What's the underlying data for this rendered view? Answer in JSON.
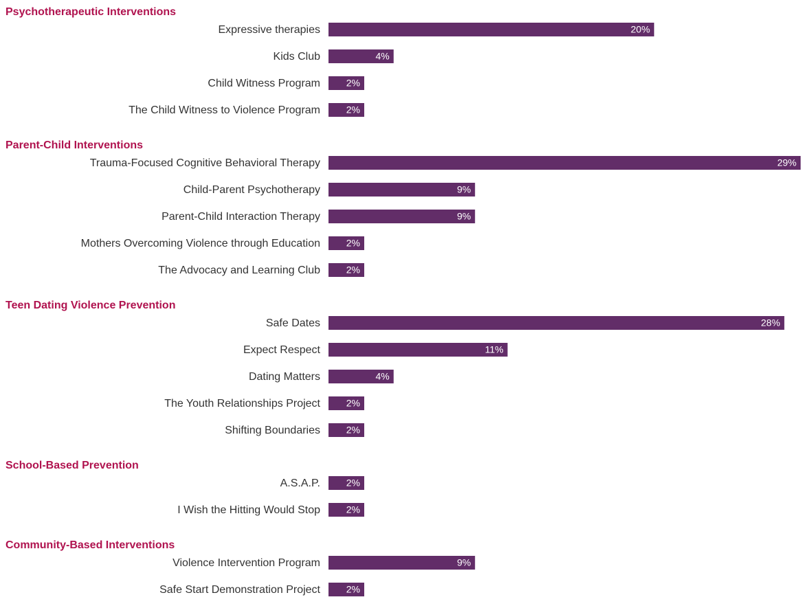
{
  "chart_data": {
    "type": "bar",
    "color": "#622d68",
    "groups": [
      {
        "title": "Psychotherapeutic Interventions",
        "categories": [
          "Expressive therapies",
          "Kids Club",
          "Child Witness Program",
          "The Child Witness to Violence Program"
        ],
        "values": [
          20,
          4,
          2,
          2
        ],
        "value_labels": [
          "20%",
          "4%",
          "2%",
          "2%"
        ]
      },
      {
        "title": "Parent-Child Interventions",
        "categories": [
          "Trauma-Focused Cognitive Behavioral Therapy",
          "Child-Parent Psychotherapy",
          "Parent-Child Interaction Therapy",
          "Mothers Overcoming Violence through Education",
          "The Advocacy and Learning Club"
        ],
        "values": [
          29,
          9,
          9,
          2,
          2
        ],
        "value_labels": [
          "29%",
          "9%",
          "9%",
          "2%",
          "2%"
        ]
      },
      {
        "title": "Teen Dating Violence Prevention",
        "categories": [
          "Safe Dates",
          "Expect Respect",
          "Dating Matters",
          "The Youth Relationships Project",
          "Shifting Boundaries"
        ],
        "values": [
          28,
          11,
          4,
          2,
          2
        ],
        "value_labels": [
          "28%",
          "11%",
          "4%",
          "2%",
          "2%"
        ]
      },
      {
        "title": "School-Based Prevention",
        "categories": [
          "A.S.A.P.",
          "I Wish the Hitting Would Stop"
        ],
        "values": [
          2,
          2
        ],
        "value_labels": [
          "2%",
          "2%"
        ]
      },
      {
        "title": "Community-Based Interventions",
        "categories": [
          "Violence Intervention Program",
          "Safe Start Demonstration Project"
        ],
        "values": [
          9,
          2
        ],
        "value_labels": [
          "9%",
          "2%"
        ]
      }
    ]
  }
}
